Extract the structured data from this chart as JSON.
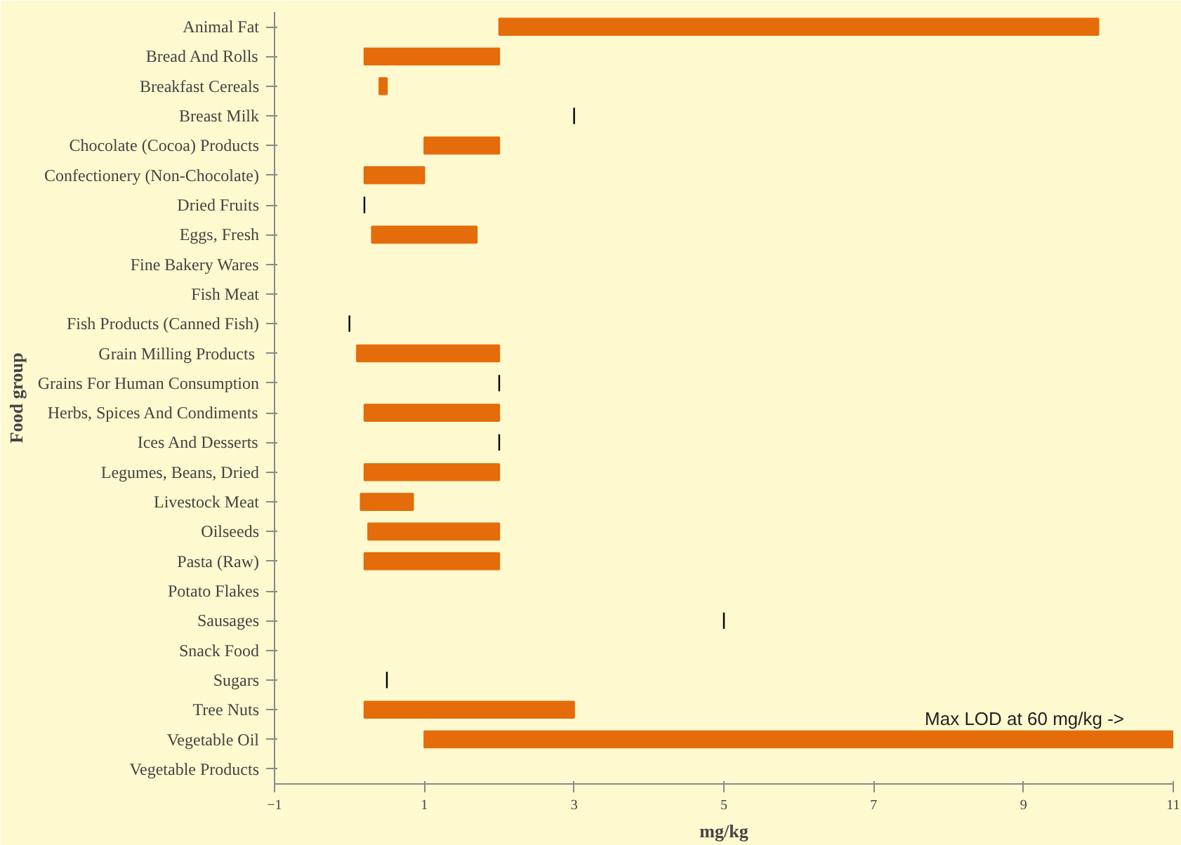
{
  "chart_data": {
    "type": "bar",
    "orientation": "horizontal",
    "xlabel": "mg/kg",
    "ylabel": "Food group",
    "categories": [
      "Animal Fat",
      "Bread And Rolls",
      "Breakfast Cereals",
      "Breast Milk",
      "Chocolate (Cocoa) Products",
      "Confectionery (Non-Chocolate)",
      "Dried Fruits",
      "Eggs, Fresh",
      "Fine Bakery Wares",
      "Fish Meat",
      "Fish Products (Canned Fish)",
      "Grain Milling  Products",
      "Grains For Human Consumption",
      "Herbs, Spices And Condiments",
      "Ices And Desserts",
      "Legumes, Beans, Dried",
      "Livestock Meat",
      "Oilseeds",
      "Pasta (Raw)",
      "Potato Flakes",
      "Sausages",
      "Snack Food",
      "Sugars",
      "Tree Nuts",
      "Vegetable Oil",
      "Vegetable Products"
    ],
    "base": [
      2,
      0.2,
      0.4,
      3,
      1,
      0.2,
      0.2,
      0.3,
      null,
      null,
      0,
      0.1,
      2,
      0.2,
      2,
      0.2,
      0.15,
      0.25,
      0.2,
      null,
      5,
      null,
      0.5,
      0.2,
      1,
      null
    ],
    "values": [
      8,
      1.8,
      0.1,
      0,
      1,
      0.8,
      0,
      1.4,
      null,
      null,
      0,
      1.9,
      0,
      1.8,
      0,
      1.8,
      0.7,
      1.75,
      1.8,
      null,
      0,
      null,
      0,
      2.8,
      10,
      null
    ],
    "colors": [
      "#e46c0a",
      "#e46c0a",
      "#e46c0a",
      "#000000",
      "#e46c0a",
      "#e46c0a",
      "#000000",
      "#e46c0a",
      null,
      null,
      "#000000",
      "#e46c0a",
      "#000000",
      "#e46c0a",
      "#000000",
      "#e46c0a",
      "#e46c0a",
      "#e46c0a",
      "#e46c0a",
      null,
      "#000000",
      null,
      "#000000",
      "#e46c0a",
      "#e46c0a",
      null
    ],
    "xlim": [
      -1,
      11
    ],
    "xticks": [
      -1,
      1,
      3,
      5,
      7,
      9,
      11
    ],
    "annotations": [
      {
        "text": "Max LOD at 60 mg/kg ->",
        "x": 11,
        "y": "Vegetable Oil"
      }
    ],
    "grid": false
  }
}
